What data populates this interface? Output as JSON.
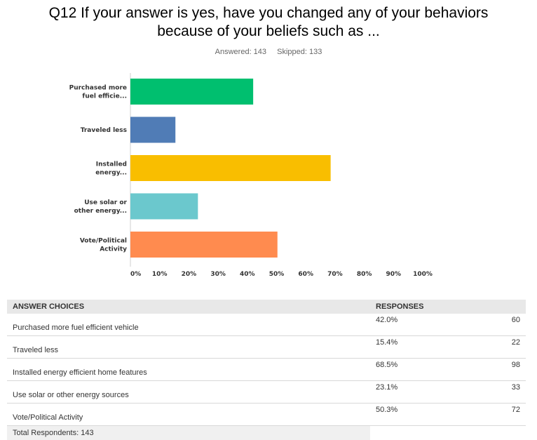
{
  "question": {
    "title_line1": "Q12 If your answer is yes, have you changed any of your behaviors",
    "title_line2": "because of your beliefs such as ...",
    "answered": "Answered: 143",
    "skipped": "Skipped: 133"
  },
  "chart_data": {
    "type": "bar",
    "orientation": "horizontal",
    "categories": [
      [
        "Purchased more",
        "fuel efficie..."
      ],
      [
        "Traveled less"
      ],
      [
        "Installed",
        "energy..."
      ],
      [
        "Use solar or",
        "other energy..."
      ],
      [
        "Vote/Political",
        "Activity"
      ]
    ],
    "values": [
      42.0,
      15.4,
      68.5,
      23.1,
      50.3
    ],
    "colors": [
      "#00bf6f",
      "#507cb6",
      "#f9be00",
      "#6bc8cd",
      "#ff8b4f"
    ],
    "xlim": [
      0,
      100
    ],
    "ticks": [
      "0%",
      "10%",
      "20%",
      "30%",
      "40%",
      "50%",
      "60%",
      "70%",
      "80%",
      "90%",
      "100%"
    ],
    "grid": false
  },
  "table": {
    "headers": {
      "choice": "ANSWER CHOICES",
      "responses": "RESPONSES"
    },
    "rows": [
      {
        "choice": "Purchased more fuel efficient vehicle",
        "pct": "42.0%",
        "count": "60"
      },
      {
        "choice": "Traveled less",
        "pct": "15.4%",
        "count": "22"
      },
      {
        "choice": "Installed energy efficient home features",
        "pct": "68.5%",
        "count": "98"
      },
      {
        "choice": "Use solar or other energy sources",
        "pct": "23.1%",
        "count": "33"
      },
      {
        "choice": "Vote/Political Activity",
        "pct": "50.3%",
        "count": "72"
      }
    ],
    "total": "Total Respondents: 143"
  }
}
